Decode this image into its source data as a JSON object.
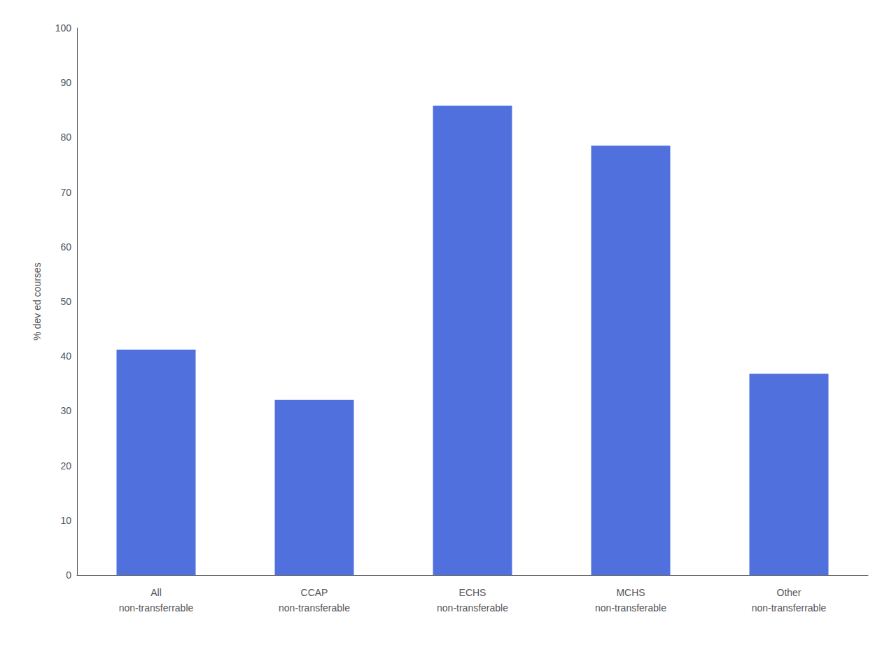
{
  "chart_data": {
    "type": "bar",
    "categories": [
      "All\nnon-transferrable",
      "CCAP\nnon-transferable",
      "ECHS\nnon-transferable",
      "MCHS\nnon-transferable",
      "Other\nnon-transferrable"
    ],
    "values": [
      41.2,
      32.0,
      85.8,
      78.5,
      36.8
    ],
    "ylabel": "% dev ed courses",
    "ylim": [
      0,
      100
    ],
    "yticks": [
      0,
      10,
      20,
      30,
      40,
      50,
      60,
      70,
      80,
      90,
      100
    ],
    "grid": false
  }
}
